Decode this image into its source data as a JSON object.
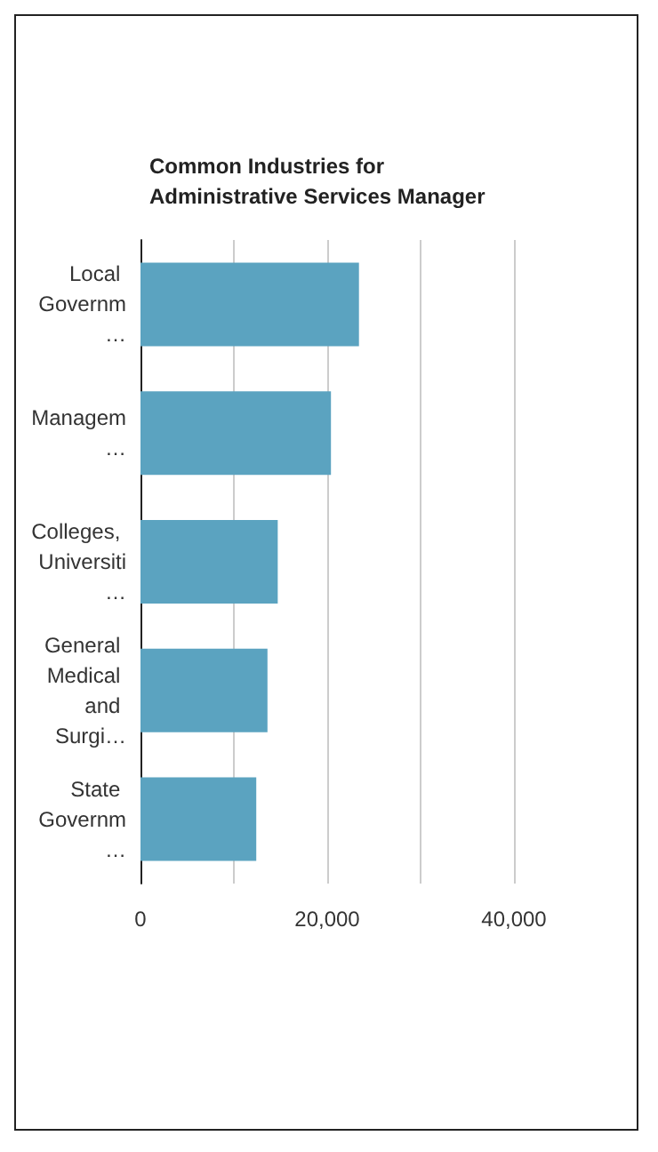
{
  "chart_data": {
    "type": "bar",
    "orientation": "horizontal",
    "title": "Common Industries for\nAdministrative Services Manager",
    "categories": [
      "Local Governm…",
      "Managem…",
      "Colleges, Universiti…",
      "General Medical and Surgi…",
      "State Governm…"
    ],
    "values": [
      23400,
      20400,
      14700,
      13600,
      12400
    ],
    "color": "#5ba3c0",
    "xlim": [
      0,
      40000
    ],
    "xticks": [
      0,
      {
        "value": 10000,
        "label": null
      },
      {
        "value": 20000,
        "label": "20,000"
      },
      {
        "value": 30000,
        "label": null
      },
      {
        "value": 40000,
        "label": "40,000"
      }
    ],
    "grid": "x"
  }
}
